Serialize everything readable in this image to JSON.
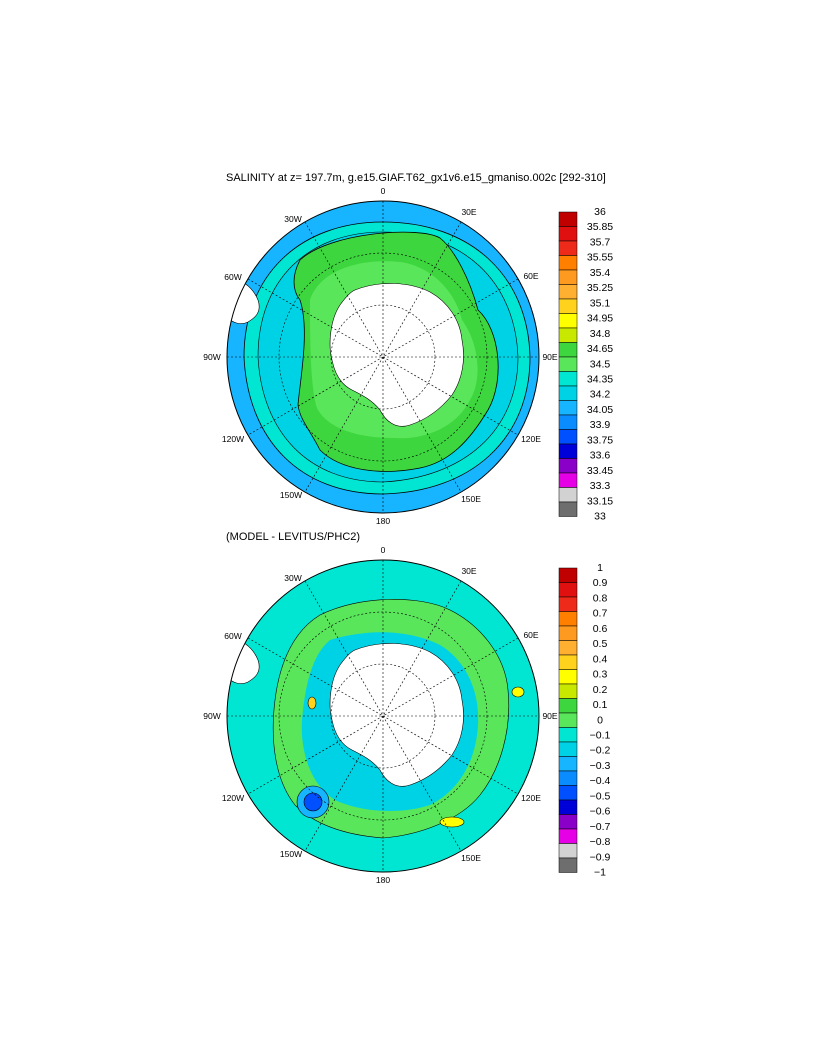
{
  "map_top": {
    "title": "SALINITY at z= 197.7m, g.e15.GIAF.T62_gx1v6.e15_gmaniso.002c [292-310]",
    "longitude_labels": [
      "0",
      "30E",
      "60E",
      "90E",
      "120E",
      "150E",
      "180",
      "150W",
      "120W",
      "90W",
      "60W",
      "30W"
    ],
    "colorbar": {
      "levels": [
        "36",
        "35.85",
        "35.7",
        "35.55",
        "35.4",
        "35.25",
        "35.1",
        "34.95",
        "34.8",
        "34.65",
        "34.5",
        "34.35",
        "34.2",
        "34.05",
        "33.9",
        "33.75",
        "33.6",
        "33.45",
        "33.3",
        "33.15",
        "33"
      ],
      "colors": [
        "#c00000",
        "#e01010",
        "#ee2a1a",
        "#ff7f00",
        "#ff9a20",
        "#ffb030",
        "#ffd21e",
        "#ffff00",
        "#c8e800",
        "#3ed63e",
        "#5ae65a",
        "#00e6d2",
        "#00d2e6",
        "#17b4ff",
        "#0a8cff",
        "#0050ff",
        "#0000d8",
        "#8a00c8",
        "#e600e6",
        "#d2d2d2",
        "#6e6e6e"
      ]
    }
  },
  "map_bottom": {
    "title": "(MODEL - LEVITUS/PHC2)",
    "longitude_labels": [
      "0",
      "30E",
      "60E",
      "90E",
      "120E",
      "150E",
      "180",
      "150W",
      "120W",
      "90W",
      "60W",
      "30W"
    ],
    "colorbar": {
      "levels": [
        "1",
        "0.9",
        "0.8",
        "0.7",
        "0.6",
        "0.5",
        "0.4",
        "0.3",
        "0.2",
        "0.1",
        "0",
        "−0.1",
        "−0.2",
        "−0.3",
        "−0.4",
        "−0.5",
        "−0.6",
        "−0.7",
        "−0.8",
        "−0.9",
        "−1"
      ],
      "colors": [
        "#c00000",
        "#e01010",
        "#ee2a1a",
        "#ff7f00",
        "#ff9a20",
        "#ffb030",
        "#ffd21e",
        "#ffff00",
        "#c8e800",
        "#3ed63e",
        "#5ae65a",
        "#00e6d2",
        "#00d2e6",
        "#17b4ff",
        "#0a8cff",
        "#0050ff",
        "#0000d8",
        "#8a00c8",
        "#e600e6",
        "#d2d2d2",
        "#6e6e6e"
      ]
    }
  }
}
